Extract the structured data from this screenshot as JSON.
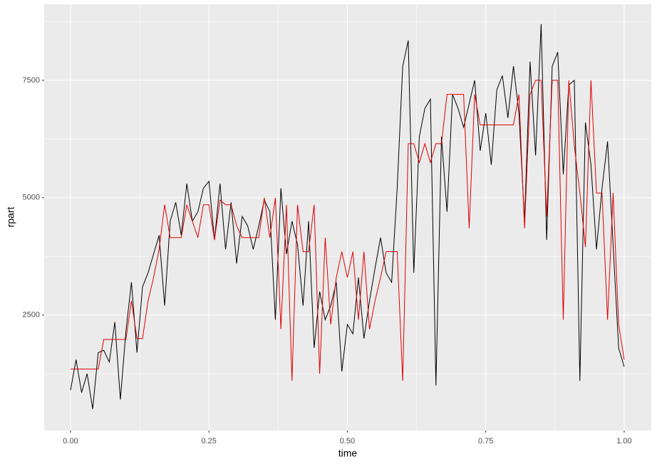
{
  "chart_data": {
    "type": "line",
    "x_label": "time",
    "y_label": "rpart",
    "x": [
      0.0,
      0.01,
      0.02,
      0.03,
      0.04,
      0.05,
      0.06,
      0.07,
      0.08,
      0.09,
      0.1,
      0.11,
      0.12,
      0.13,
      0.14,
      0.15,
      0.16,
      0.17,
      0.18,
      0.19,
      0.2,
      0.21,
      0.22,
      0.23,
      0.24,
      0.25,
      0.26,
      0.27,
      0.28,
      0.29,
      0.3,
      0.31,
      0.32,
      0.33,
      0.34,
      0.35,
      0.36,
      0.37,
      0.38,
      0.39,
      0.4,
      0.41,
      0.42,
      0.43,
      0.44,
      0.45,
      0.46,
      0.47,
      0.48,
      0.49,
      0.5,
      0.51,
      0.52,
      0.53,
      0.54,
      0.55,
      0.56,
      0.57,
      0.58,
      0.59,
      0.6,
      0.61,
      0.62,
      0.63,
      0.64,
      0.65,
      0.66,
      0.67,
      0.68,
      0.69,
      0.7,
      0.71,
      0.72,
      0.73,
      0.74,
      0.75,
      0.76,
      0.77,
      0.78,
      0.79,
      0.8,
      0.81,
      0.82,
      0.83,
      0.84,
      0.85,
      0.86,
      0.87,
      0.88,
      0.89,
      0.9,
      0.91,
      0.92,
      0.93,
      0.94,
      0.95,
      0.96,
      0.97,
      0.98,
      0.99,
      1.0
    ],
    "series": [
      {
        "color": "#000000",
        "values": [
          900,
          1550,
          850,
          1250,
          500,
          1700,
          1750,
          1500,
          2350,
          700,
          2150,
          3200,
          1700,
          3100,
          3400,
          3800,
          4200,
          2700,
          4500,
          4900,
          4200,
          5300,
          4500,
          4700,
          5200,
          5350,
          4100,
          5300,
          3900,
          4900,
          3600,
          4600,
          4400,
          3900,
          4400,
          4950,
          4700,
          2400,
          5200,
          3800,
          4500,
          4000,
          2700,
          4500,
          1800,
          3000,
          2400,
          2700,
          3200,
          1300,
          2300,
          2100,
          3300,
          2000,
          2800,
          3500,
          4150,
          3400,
          3200,
          5200,
          7800,
          8350,
          3400,
          6300,
          6900,
          7100,
          1000,
          6300,
          4700,
          7200,
          6900,
          6500,
          7000,
          7500,
          6000,
          6800,
          5700,
          7300,
          7600,
          6700,
          7800,
          6800,
          4500,
          7900,
          5900,
          8700,
          4100,
          7800,
          8100,
          5500,
          7400,
          7500,
          1100,
          6600,
          5700,
          3900,
          5200,
          6200,
          4000,
          1800,
          1400
        ]
      },
      {
        "color": "#e00000",
        "values": [
          1350,
          1350,
          1350,
          1350,
          1350,
          1350,
          1980,
          1980,
          1980,
          1980,
          1980,
          2800,
          2000,
          2000,
          2800,
          3300,
          3900,
          4850,
          4150,
          4150,
          4150,
          4850,
          4500,
          4150,
          4850,
          4850,
          4100,
          4950,
          4850,
          4850,
          4400,
          4150,
          4150,
          4150,
          4150,
          5000,
          4150,
          5000,
          2200,
          4850,
          1100,
          4850,
          3850,
          3850,
          4850,
          1250,
          4150,
          2300,
          3300,
          3850,
          3300,
          3850,
          2400,
          3850,
          2200,
          2800,
          3300,
          3850,
          3850,
          3850,
          1100,
          6150,
          6150,
          5750,
          6150,
          5750,
          6150,
          6150,
          7200,
          7200,
          7200,
          7200,
          4350,
          7200,
          6550,
          6550,
          6550,
          6550,
          6550,
          6550,
          6550,
          7200,
          4350,
          7200,
          7500,
          7500,
          4600,
          7500,
          7500,
          2400,
          7500,
          6100,
          5100,
          3950,
          7500,
          5100,
          5100,
          2400,
          5100,
          2300,
          1550
        ]
      }
    ],
    "xlim": [
      -0.0476,
      1.049
    ],
    "ylim": [
      40,
      9120
    ],
    "xticks": [
      {
        "value": 0,
        "label": "0.00"
      },
      {
        "value": 0.25,
        "label": "0.25"
      },
      {
        "value": 0.5,
        "label": "0.50"
      },
      {
        "value": 0.75,
        "label": "0.75"
      },
      {
        "value": 1,
        "label": "1.00"
      }
    ],
    "yticks": [
      2500,
      5000,
      7500
    ],
    "x_minor_ticks": [
      0.125,
      0.375,
      0.625,
      0.875
    ],
    "y_minor_ticks": [
      1250,
      3750,
      6250,
      8750
    ],
    "grid": true
  }
}
